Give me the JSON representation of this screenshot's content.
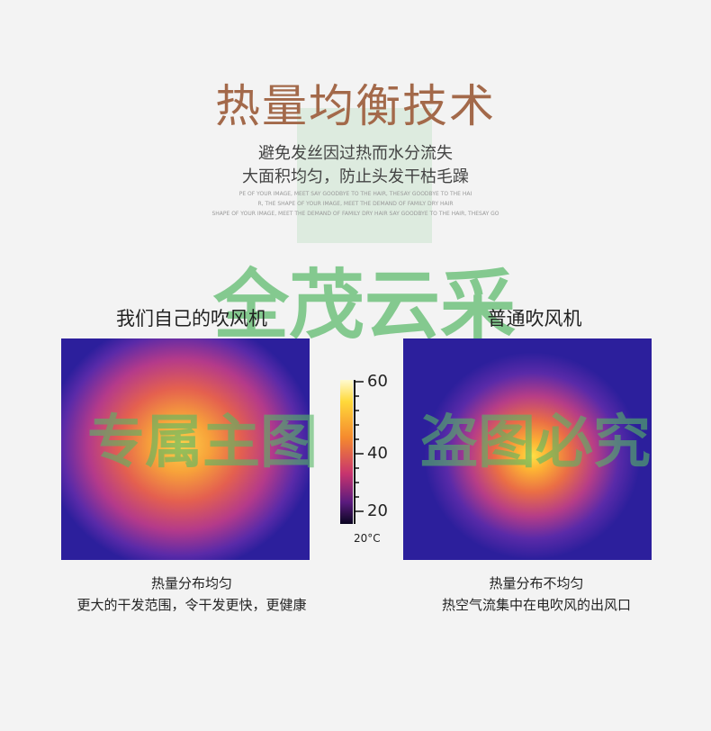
{
  "header": {
    "title": "热量均衡技术",
    "subtitle": [
      "避免发丝因过热而水分流失",
      "大面积均匀，防止头发干枯毛躁"
    ],
    "fine_print": [
      "PE OF YOUR IMAGE, MEET SAY GOODBYE TO THE HAIR, THESAY GOODBYE TO THE HAI",
      "R, THE SHAPE OF YOUR IMAGE, MEET THE DEMAND OF FAMILY DRY HAIR",
      "SHAPE OF YOUR IMAGE, MEET THE DEMAND OF FAMILY DRY HAIR SAY GOODBYE TO THE HAIR, THESAY GO"
    ]
  },
  "watermarks": [
    "全茂云采",
    "专属主图",
    "盗图必究"
  ],
  "left": {
    "label": "我们自己的吹风机",
    "caption": [
      "热量分布均匀",
      "更大的干发范围，令干发更快，更健康"
    ]
  },
  "right": {
    "label": "普通吹风机",
    "caption": [
      "热量分布不均匀",
      "热空气流集中在电吹风的出风口"
    ]
  },
  "colorbar": {
    "ticks": [
      60,
      40,
      20
    ],
    "unit": "20°C"
  }
}
